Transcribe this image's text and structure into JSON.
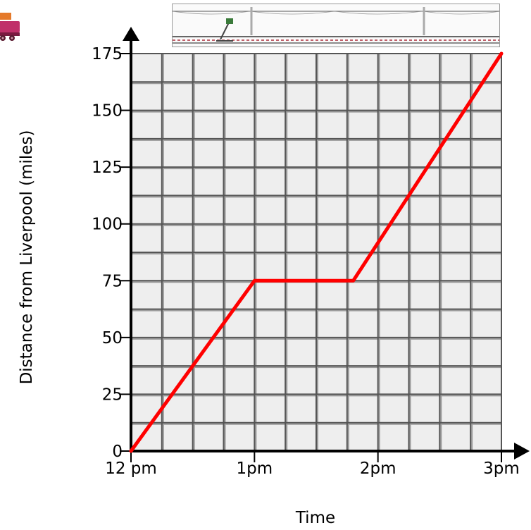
{
  "icons": {
    "train": "train-icon",
    "railway": "railway-scene-icon"
  },
  "colors": {
    "line": "#ff0000",
    "axis": "#000000",
    "grid_major": "#555555",
    "grid_minor": "#9a9a9a",
    "plot_background": "#eeeeee"
  },
  "chart_data": {
    "type": "line",
    "xlabel": "Time",
    "ylabel": "Distance from Liverpool (miles)",
    "x_tick_labels": [
      "12 pm",
      "1pm",
      "2pm",
      "3pm"
    ],
    "x_ticks_hours": [
      0,
      1,
      2,
      3
    ],
    "y_ticks": [
      0,
      25,
      50,
      75,
      100,
      125,
      150,
      175
    ],
    "xlim_hours": [
      0,
      3
    ],
    "ylim": [
      0,
      175
    ],
    "grid": true,
    "series": [
      {
        "x_hours": [
          0,
          1,
          1.8,
          3
        ],
        "values": [
          0,
          75,
          75,
          175
        ]
      }
    ]
  }
}
